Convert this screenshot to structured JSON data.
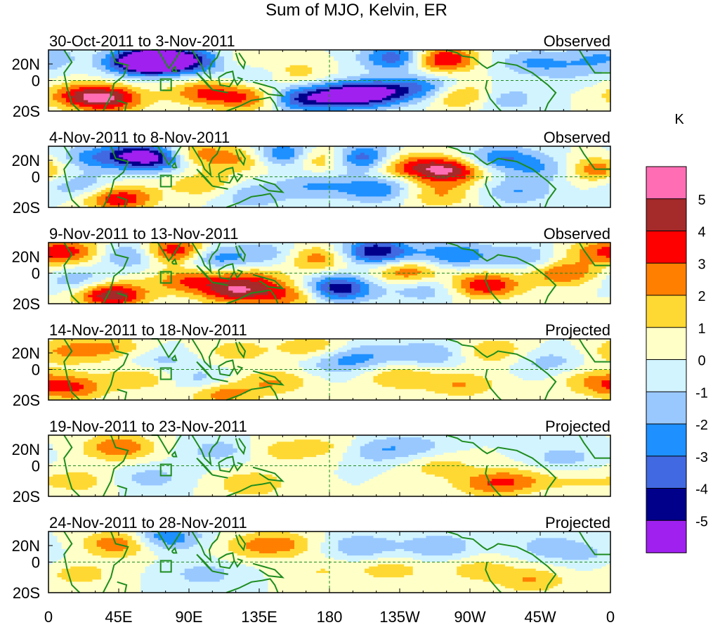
{
  "title": "Sum of MJO, Kelvin, ER",
  "colors": {
    "levels": [
      "#a020f0",
      "#00008b",
      "#4169e1",
      "#1e90ff",
      "#99c8ff",
      "#d2f4ff",
      "#ffffc8",
      "#ffd933",
      "#ff7f00",
      "#ff0000",
      "#a52a2a",
      "#ff6eb4"
    ],
    "coast": "#1e8c1e",
    "dash": "#1e8c1e"
  },
  "chart_data": {
    "type": "heatmap",
    "units": "K",
    "colorbar_ticks": [
      "5",
      "4",
      "3",
      "2",
      "1",
      "0",
      "-1",
      "-2",
      "-3",
      "-4",
      "-5"
    ],
    "levels": [
      -5,
      -4,
      -3,
      -2,
      -1,
      0,
      1,
      2,
      3,
      4,
      5
    ],
    "xticks": [
      "0",
      "45E",
      "90E",
      "135E",
      "180",
      "135W",
      "90W",
      "45W",
      "0"
    ],
    "ytick_labels": [
      "20N",
      "0",
      "20S"
    ],
    "lon_range": [
      0,
      360
    ],
    "lat_range": [
      -20,
      20
    ],
    "panels": [
      {
        "date": "30-Oct-2011 to 3-Nov-2011",
        "status": "Observed",
        "blobs": [
          [
            60,
            12,
            -6
          ],
          [
            75,
            14,
            -5
          ],
          [
            100,
            12,
            -3
          ],
          [
            120,
            12,
            2
          ],
          [
            135,
            5,
            -2
          ],
          [
            160,
            -12,
            -4
          ],
          [
            190,
            -10,
            -4.5
          ],
          [
            210,
            -8,
            -4
          ],
          [
            240,
            -5,
            -3
          ],
          [
            250,
            14,
            5
          ],
          [
            265,
            -10,
            3
          ],
          [
            290,
            -12,
            -2
          ],
          [
            310,
            12,
            -2
          ],
          [
            335,
            6,
            -1
          ],
          [
            20,
            -10,
            3
          ],
          [
            40,
            -12,
            4
          ],
          [
            100,
            -8,
            3
          ],
          [
            130,
            -12,
            3
          ],
          [
            155,
            5,
            2
          ],
          [
            225,
            15,
            -4.5
          ],
          [
            355,
            15,
            -2
          ]
        ]
      },
      {
        "date": "4-Nov-2011 to 8-Nov-2011",
        "status": "Observed",
        "blobs": [
          [
            25,
            12,
            -2
          ],
          [
            45,
            -14,
            4
          ],
          [
            55,
            14,
            -4
          ],
          [
            75,
            12,
            -4.5
          ],
          [
            90,
            14,
            4
          ],
          [
            100,
            -5,
            2
          ],
          [
            130,
            12,
            3
          ],
          [
            150,
            14,
            -5
          ],
          [
            175,
            12,
            4
          ],
          [
            200,
            12,
            -5
          ],
          [
            225,
            8,
            3
          ],
          [
            255,
            4,
            5
          ],
          [
            290,
            12,
            -3
          ],
          [
            320,
            5,
            -2
          ],
          [
            350,
            5,
            3
          ],
          [
            250,
            -12,
            2
          ],
          [
            210,
            -8,
            -3
          ],
          [
            170,
            -6,
            -2
          ],
          [
            130,
            -12,
            -2
          ],
          [
            300,
            -10,
            -2
          ],
          [
            20,
            -6,
            -2
          ]
        ]
      },
      {
        "date": "9-Nov-2011 to 13-Nov-2011",
        "status": "Observed",
        "blobs": [
          [
            15,
            14,
            3
          ],
          [
            40,
            -14,
            5
          ],
          [
            55,
            12,
            -3
          ],
          [
            80,
            14,
            5
          ],
          [
            90,
            -5,
            3
          ],
          [
            105,
            10,
            -3
          ],
          [
            120,
            -12,
            4
          ],
          [
            145,
            12,
            -2
          ],
          [
            170,
            10,
            3
          ],
          [
            185,
            -10,
            -5
          ],
          [
            210,
            14,
            -5
          ],
          [
            230,
            0,
            3
          ],
          [
            240,
            -10,
            -2
          ],
          [
            260,
            12,
            -3
          ],
          [
            280,
            -8,
            4
          ],
          [
            305,
            10,
            -2
          ],
          [
            330,
            0,
            3
          ],
          [
            350,
            14,
            2
          ],
          [
            20,
            -5,
            -2
          ],
          [
            130,
            -3,
            2
          ],
          [
            155,
            -14,
            3
          ]
        ]
      },
      {
        "date": "14-Nov-2011 to 18-Nov-2011",
        "status": "Projected",
        "blobs": [
          [
            15,
            -12,
            3
          ],
          [
            10,
            12,
            2
          ],
          [
            40,
            14,
            2
          ],
          [
            60,
            -5,
            2
          ],
          [
            70,
            5,
            -1.5
          ],
          [
            100,
            -8,
            -2
          ],
          [
            120,
            12,
            1.5
          ],
          [
            145,
            -8,
            2
          ],
          [
            170,
            14,
            2
          ],
          [
            185,
            5,
            -2
          ],
          [
            205,
            10,
            -1.5
          ],
          [
            225,
            -5,
            2
          ],
          [
            245,
            10,
            -2
          ],
          [
            265,
            -10,
            2
          ],
          [
            285,
            12,
            2
          ],
          [
            320,
            5,
            -1.5
          ],
          [
            350,
            -8,
            2
          ],
          [
            110,
            -15,
            3
          ]
        ]
      },
      {
        "date": "19-Nov-2011 to 23-Nov-2011",
        "status": "Projected",
        "blobs": [
          [
            45,
            12,
            3
          ],
          [
            20,
            -10,
            1.5
          ],
          [
            65,
            -8,
            -1.5
          ],
          [
            110,
            10,
            -1.5
          ],
          [
            130,
            -12,
            2
          ],
          [
            150,
            10,
            1.5
          ],
          [
            185,
            12,
            1.5
          ],
          [
            205,
            10,
            -2
          ],
          [
            235,
            12,
            -1.5
          ],
          [
            250,
            0,
            1.5
          ],
          [
            280,
            -12,
            2
          ],
          [
            300,
            -10,
            2
          ],
          [
            330,
            5,
            -1.5
          ],
          [
            340,
            -10,
            1
          ]
        ]
      },
      {
        "date": "24-Nov-2011 to 28-Nov-2011",
        "status": "Projected",
        "blobs": [
          [
            45,
            12,
            3
          ],
          [
            75,
            16,
            -3
          ],
          [
            20,
            -8,
            1.5
          ],
          [
            100,
            -8,
            -1.5
          ],
          [
            130,
            10,
            1.5
          ],
          [
            150,
            12,
            2
          ],
          [
            175,
            -6,
            1
          ],
          [
            200,
            10,
            -2
          ],
          [
            220,
            -5,
            1.5
          ],
          [
            250,
            10,
            -2
          ],
          [
            275,
            -5,
            1.5
          ],
          [
            310,
            -12,
            2
          ],
          [
            320,
            10,
            -1.5
          ],
          [
            345,
            5,
            -1
          ]
        ]
      }
    ]
  }
}
